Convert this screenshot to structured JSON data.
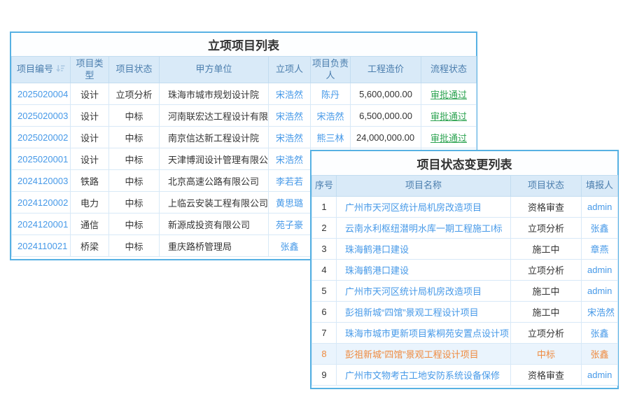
{
  "colors": {
    "card_border": "#57b1e3",
    "header_bg": "#d9eaf8",
    "header_text": "#4a7dad",
    "link_blue": "#4699e8",
    "approved_green": "#2ba350",
    "highlight_orange": "#ef8a3e",
    "highlight_row_bg": "#eaf4fd"
  },
  "table1": {
    "title": "立项项目列表",
    "columns": [
      {
        "name": "project-id",
        "label": "项目编号",
        "icon": "sort-icon",
        "sortable": true
      },
      {
        "name": "project-type",
        "label": "项目类型"
      },
      {
        "name": "project-status",
        "label": "项目状态"
      },
      {
        "name": "client-unit",
        "label": "甲方单位"
      },
      {
        "name": "initiator",
        "label": "立项人"
      },
      {
        "name": "project-manager",
        "label": "项目负责人"
      },
      {
        "name": "project-cost",
        "label": "工程造价"
      },
      {
        "name": "workflow-status",
        "label": "流程状态"
      }
    ],
    "rows": [
      {
        "cells": [
          "2025020004",
          "设计",
          "立项分析",
          "珠海市城市规划设计院",
          "宋浩然",
          "陈丹",
          "5,600,000.00",
          "审批通过"
        ]
      },
      {
        "cells": [
          "2025020003",
          "设计",
          "中标",
          "河南联宏达工程设计有限公司",
          "宋浩然",
          "宋浩然",
          "6,500,000.00",
          "审批通过"
        ]
      },
      {
        "cells": [
          "2025020002",
          "设计",
          "中标",
          "南京信达新工程设计院",
          "宋浩然",
          "熊三林",
          "24,000,000.00",
          "审批通过"
        ]
      },
      {
        "cells": [
          "2025020001",
          "设计",
          "中标",
          "天津博润设计管理有限公司",
          "宋浩然",
          null,
          null,
          null
        ]
      },
      {
        "cells": [
          "2024120003",
          "铁路",
          "中标",
          "北京高速公路有限公司",
          "李若若",
          null,
          null,
          null
        ]
      },
      {
        "cells": [
          "2024120002",
          "电力",
          "中标",
          "上临云安装工程有限公司",
          "黄思璐",
          null,
          null,
          null
        ]
      },
      {
        "cells": [
          "2024120001",
          "通信",
          "中标",
          "新源成投资有限公司",
          "苑子豪",
          null,
          null,
          null
        ]
      },
      {
        "cells": [
          "2024110021",
          "桥梁",
          "中标",
          "重庆路桥管理局",
          "张鑫",
          null,
          null,
          null
        ]
      }
    ]
  },
  "table2": {
    "title": "项目状态变更列表",
    "columns": [
      {
        "name": "row-number",
        "label": "序号"
      },
      {
        "name": "project-name",
        "label": "项目名称"
      },
      {
        "name": "project-status",
        "label": "项目状态"
      },
      {
        "name": "reporter",
        "label": "填报人"
      }
    ],
    "rows": [
      {
        "cells": [
          "1",
          "广州市天河区统计局机房改造项目",
          "资格审查",
          "admin"
        ]
      },
      {
        "cells": [
          "2",
          "云南水利枢纽潜明水库一期工程施工I标",
          "立项分析",
          "张鑫"
        ]
      },
      {
        "cells": [
          "3",
          "珠海鹤港口建设",
          "施工中",
          "章燕"
        ]
      },
      {
        "cells": [
          "4",
          "珠海鹤港口建设",
          "立项分析",
          "admin"
        ]
      },
      {
        "cells": [
          "5",
          "广州市天河区统计局机房改造项目",
          "施工中",
          "admin"
        ]
      },
      {
        "cells": [
          "6",
          "彭祖新城“四馆”景观工程设计项目",
          "施工中",
          "宋浩然"
        ]
      },
      {
        "cells": [
          "7",
          "珠海市城市更新项目紫桐苑安置点设计项目",
          "立项分析",
          "张鑫"
        ]
      },
      {
        "cells": [
          "8",
          "彭祖新城“四馆”景观工程设计项目",
          "中标",
          "张鑫"
        ],
        "state": "highlighted"
      },
      {
        "cells": [
          "9",
          "广州市文物考古工地安防系统设备保修",
          "资格审查",
          "admin"
        ]
      }
    ]
  }
}
